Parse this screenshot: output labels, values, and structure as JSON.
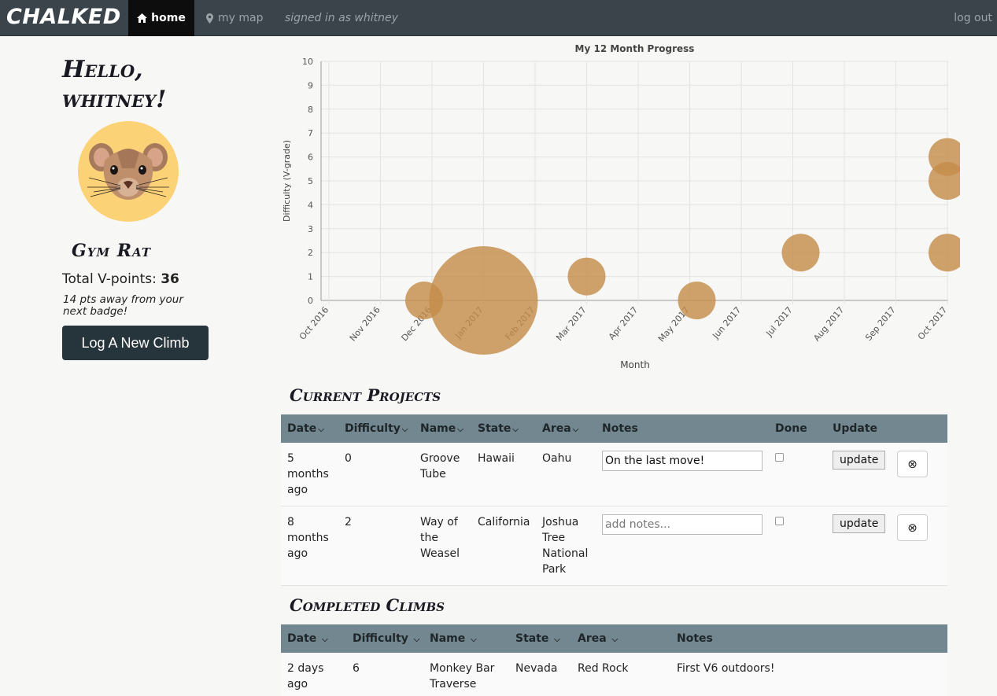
{
  "nav": {
    "brand": "CHALKED",
    "home": "home",
    "map": "my map",
    "signed_in": "signed in as whitney",
    "logout": "log out"
  },
  "sidebar": {
    "greeting_line1": "Hello,",
    "greeting_line2": "whitney!",
    "badge_name": "Gym Rat",
    "vpoints_label": "Total V-points: ",
    "vpoints_value": "36",
    "away_text": "14 pts away from your next badge!",
    "log_button": "Log A New Climb"
  },
  "chart_data": {
    "type": "bubble",
    "title": "My 12 Month Progress",
    "xlabel": "Month",
    "ylabel": "Difficulty (V-grade)",
    "ylim": [
      0,
      10
    ],
    "yticks": [
      "0",
      "1",
      "2",
      "3",
      "4",
      "5",
      "6",
      "7",
      "8",
      "9",
      "10"
    ],
    "xticks": [
      "Oct 2016",
      "Nov 2016",
      "Dec 2016",
      "Jan 2017",
      "Feb 2017",
      "Mar 2017",
      "Apr 2017",
      "May 2017",
      "Jun 2017",
      "Jul 2017",
      "Aug 2017",
      "Sep 2017",
      "Oct 2017"
    ],
    "points": [
      {
        "x": "Dec 2016",
        "y": 0,
        "size": 1
      },
      {
        "x": "Jan 2017",
        "y": 0,
        "size": 3
      },
      {
        "x": "Mar 2017",
        "y": 1,
        "size": 1
      },
      {
        "x": "May 2017",
        "y": 0,
        "size": 1
      },
      {
        "x": "Jul 2017",
        "y": 2,
        "size": 1
      },
      {
        "x": "Oct 2017",
        "y": 2,
        "size": 1
      },
      {
        "x": "Oct 2017",
        "y": 5,
        "size": 1
      },
      {
        "x": "Oct 2017",
        "y": 6,
        "size": 1
      }
    ],
    "color": "#c48c4a"
  },
  "projects": {
    "title": "Current Projects",
    "columns": [
      "Date",
      "Difficulty",
      "Name",
      "State",
      "Area",
      "Notes",
      "Done",
      "Update"
    ],
    "rows": [
      {
        "date": "5 months ago",
        "difficulty": "0",
        "name": "Groove Tube",
        "state": "Hawaii",
        "area": "Oahu",
        "notes_value": "On the last move!",
        "notes_placeholder": "add notes...",
        "update": "update"
      },
      {
        "date": "8 months ago",
        "difficulty": "2",
        "name": "Way of the Weasel",
        "state": "California",
        "area": "Joshua Tree National Park",
        "notes_value": "",
        "notes_placeholder": "add notes...",
        "update": "update"
      }
    ]
  },
  "completed": {
    "title": "Completed Climbs",
    "columns": [
      "Date",
      "Difficulty",
      "Name",
      "State",
      "Area",
      "Notes"
    ],
    "rows": [
      {
        "date": "2 days ago",
        "difficulty": "6",
        "name": "Monkey Bar Traverse",
        "state": "Nevada",
        "area": "Red Rock",
        "notes": "First V6 outdoors!"
      }
    ]
  }
}
